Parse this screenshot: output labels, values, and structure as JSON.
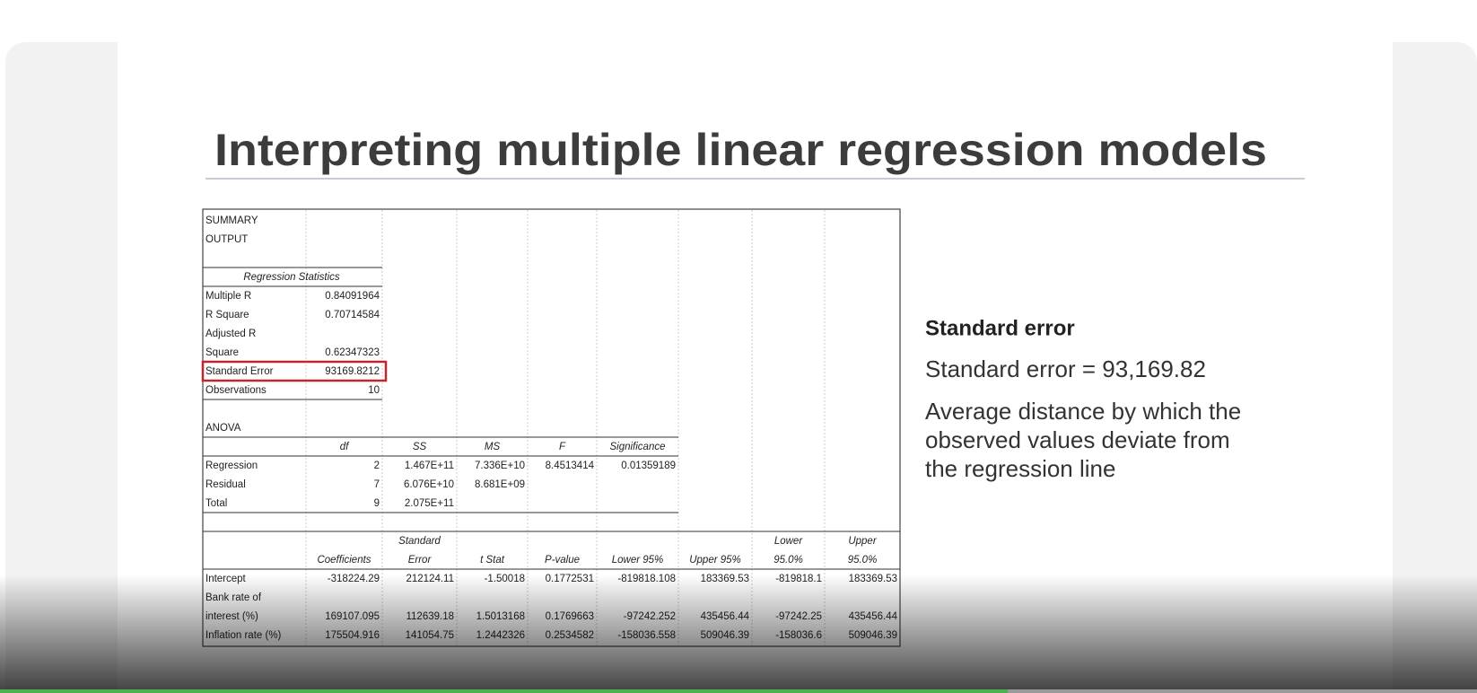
{
  "slide": {
    "title": "Interpreting multiple linear regression models",
    "side": {
      "heading": "Standard error",
      "formula": "Standard error = 93,169.82",
      "description": [
        "Average distance by which the",
        "observed values deviate from",
        "the regression line"
      ]
    }
  },
  "table": {
    "rows": [
      [
        "SUMMARY",
        null,
        null,
        null,
        null,
        null,
        null,
        null,
        null
      ],
      [
        "OUTPUT",
        null,
        null,
        null,
        null,
        null,
        null,
        null,
        null
      ],
      [
        null,
        null,
        null,
        null,
        null,
        null,
        null,
        null,
        null
      ],
      [
        "Regression Statistics",
        null,
        null,
        null,
        null,
        null,
        null,
        null,
        null
      ],
      [
        "Multiple R",
        "0.84091964",
        null,
        null,
        null,
        null,
        null,
        null,
        null
      ],
      [
        "R Square",
        "0.70714584",
        null,
        null,
        null,
        null,
        null,
        null,
        null
      ],
      [
        "Adjusted R",
        null,
        null,
        null,
        null,
        null,
        null,
        null,
        null
      ],
      [
        "Square",
        "0.62347323",
        null,
        null,
        null,
        null,
        null,
        null,
        null
      ],
      [
        "Standard Error",
        "93169.8212",
        null,
        null,
        null,
        null,
        null,
        null,
        null
      ],
      [
        "Observations",
        "10",
        null,
        null,
        null,
        null,
        null,
        null,
        null
      ],
      [
        null,
        null,
        null,
        null,
        null,
        null,
        null,
        null,
        null
      ],
      [
        "ANOVA",
        null,
        null,
        null,
        null,
        null,
        null,
        null,
        null
      ],
      [
        null,
        "df",
        "SS",
        "MS",
        "F",
        "Significance",
        null,
        null,
        null
      ],
      [
        "Regression",
        "2",
        "1.467E+11",
        "7.336E+10",
        "8.4513414",
        "0.01359189",
        null,
        null,
        null
      ],
      [
        "Residual",
        "7",
        "6.076E+10",
        "8.681E+09",
        null,
        null,
        null,
        null,
        null
      ],
      [
        "Total",
        "9",
        "2.075E+11",
        null,
        null,
        null,
        null,
        null,
        null
      ],
      [
        null,
        null,
        null,
        null,
        null,
        null,
        null,
        null,
        null
      ],
      [
        null,
        null,
        "Standard",
        null,
        null,
        null,
        null,
        "Lower",
        "Upper"
      ],
      [
        null,
        "Coefficients",
        "Error",
        "t Stat",
        "P-value",
        "Lower 95%",
        "Upper 95%",
        "95.0%",
        "95.0%"
      ],
      [
        "Intercept",
        "-318224.29",
        "212124.11",
        "-1.50018",
        "0.1772531",
        "-819818.108",
        "183369.53",
        "-819818.1",
        "183369.53"
      ],
      [
        "Bank rate of",
        null,
        null,
        null,
        null,
        null,
        null,
        null,
        null
      ],
      [
        "interest (%)",
        "169107.095",
        "112639.18",
        "1.5013168",
        "0.1769663",
        "-97242.252",
        "435456.44",
        "-97242.25",
        "435456.44"
      ],
      [
        "Inflation rate (%)",
        "175504.916",
        "141054.75",
        "1.2442326",
        "0.2534582",
        "-158036.558",
        "509046.39",
        "-158036.6",
        "509046.39"
      ]
    ]
  }
}
